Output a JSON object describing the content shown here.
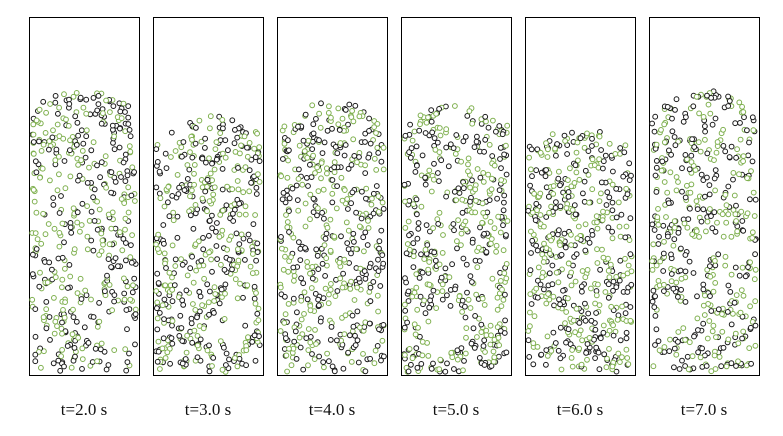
{
  "panels": [
    {
      "label": "t=2.0 s"
    },
    {
      "label": "t=3.0 s"
    },
    {
      "label": "t=4.0 s"
    },
    {
      "label": "t=5.0 s"
    },
    {
      "label": "t=6.0 s"
    },
    {
      "label": "t=7.0 s"
    }
  ]
}
